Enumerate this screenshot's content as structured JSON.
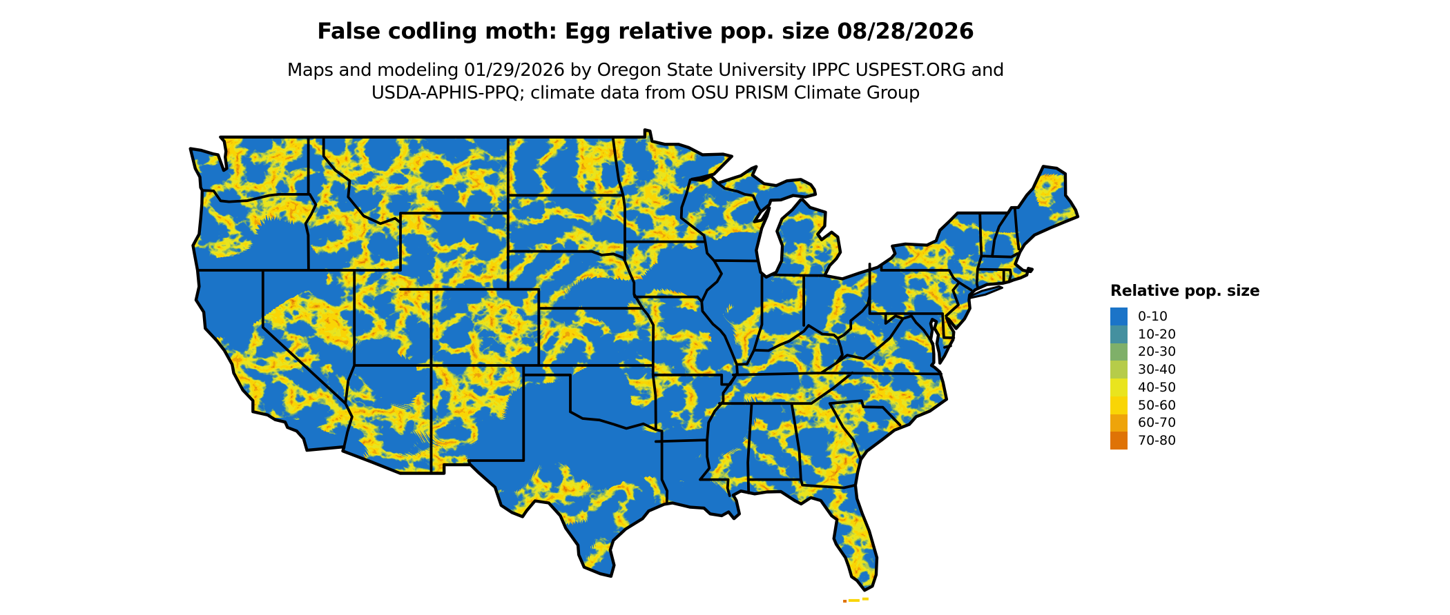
{
  "header": {
    "title": "False codling moth: Egg relative pop. size 08/28/2026",
    "subtitle_line1": "Maps and modeling 01/29/2026 by Oregon State University IPPC USPEST.ORG and",
    "subtitle_line2": "USDA-APHIS-PPQ; climate data from OSU PRISM Climate Group"
  },
  "legend": {
    "title": "Relative pop. size",
    "items": [
      {
        "label": "0-10",
        "color": "#1B74C8"
      },
      {
        "label": "10-20",
        "color": "#44909F"
      },
      {
        "label": "20-30",
        "color": "#7FB069"
      },
      {
        "label": "30-40",
        "color": "#B6CC49"
      },
      {
        "label": "40-50",
        "color": "#E9E41E"
      },
      {
        "label": "50-60",
        "color": "#F9D505"
      },
      {
        "label": "60-70",
        "color": "#EEA40A"
      },
      {
        "label": "70-80",
        "color": "#DF7306"
      }
    ]
  },
  "map": {
    "region": "Continental United States",
    "base_color": "#1B74C8",
    "border_color": "#000000",
    "water_background": "#FFFFFF"
  }
}
